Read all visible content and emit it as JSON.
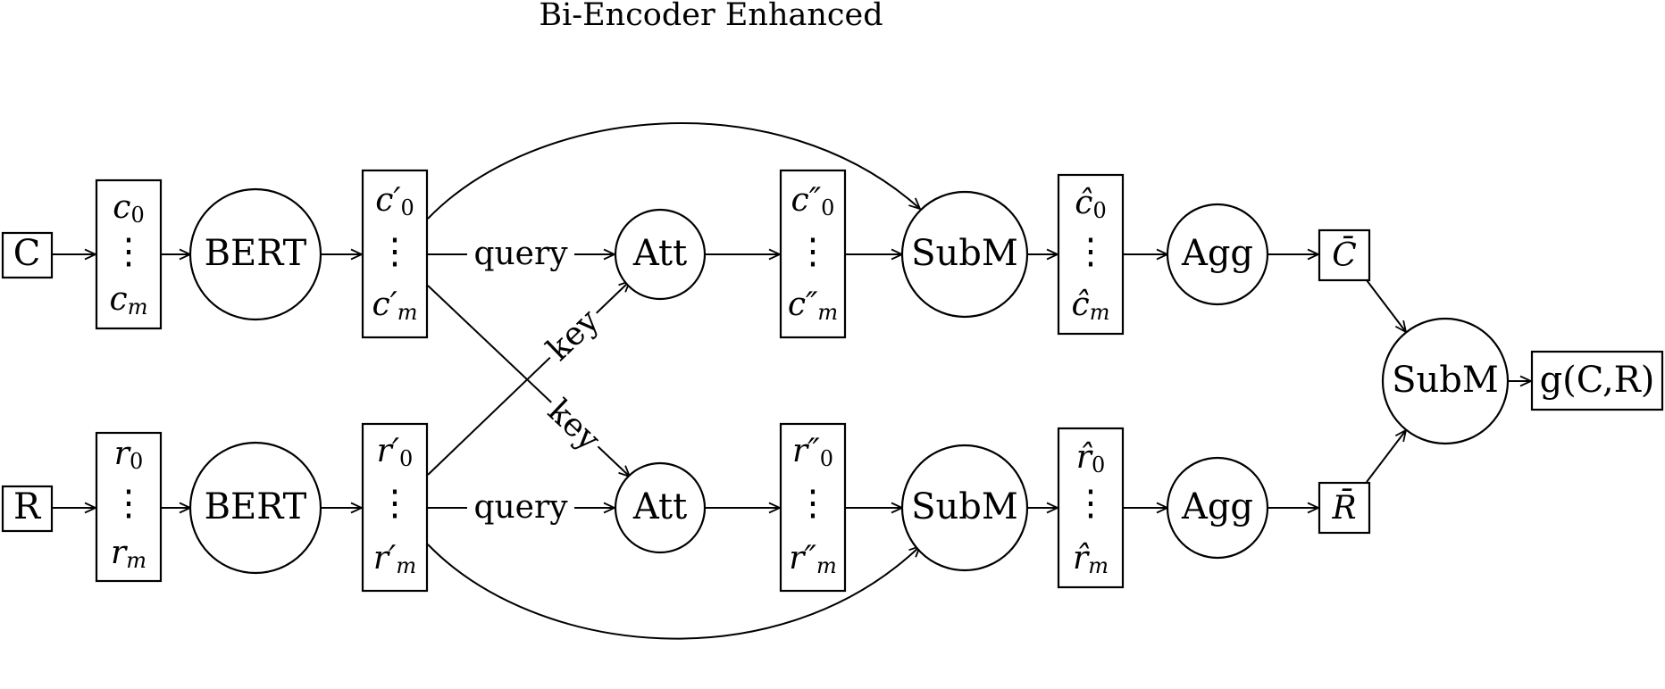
{
  "title": "Bi-Encoder Enhanced",
  "inputs": {
    "context": "C",
    "response": "R"
  },
  "context_branch": {
    "tokens": {
      "first": "c",
      "first_sub": "0",
      "dots": "⋮",
      "last": "c",
      "last_sub": "m"
    },
    "encoder": "BERT",
    "encoded": {
      "first": "c′",
      "first_sub": "0",
      "dots": "⋮",
      "last": "c′",
      "last_sub": "m"
    },
    "attention": "Att",
    "attended": {
      "first": "c″",
      "first_sub": "0",
      "dots": "⋮",
      "last": "c″",
      "last_sub": "m"
    },
    "submult": "SubM",
    "fused": {
      "first": "ĉ",
      "first_sub": "0",
      "dots": "⋮",
      "last": "ĉ",
      "last_sub": "m"
    },
    "aggregator": "Agg",
    "pooled": "C̄"
  },
  "response_branch": {
    "tokens": {
      "first": "r",
      "first_sub": "0",
      "dots": "⋮",
      "last": "r",
      "last_sub": "m"
    },
    "encoder": "BERT",
    "encoded": {
      "first": "r′",
      "first_sub": "0",
      "dots": "⋮",
      "last": "r′",
      "last_sub": "m"
    },
    "attention": "Att",
    "attended": {
      "first": "r″",
      "first_sub": "0",
      "dots": "⋮",
      "last": "r″",
      "last_sub": "m"
    },
    "submult": "SubM",
    "fused": {
      "first": "r̂",
      "first_sub": "0",
      "dots": "⋮",
      "last": "r̂",
      "last_sub": "m"
    },
    "aggregator": "Agg",
    "pooled": "R̄"
  },
  "merge": {
    "submult": "SubM",
    "output": "g(C,R)"
  },
  "edge_labels": {
    "query": "query",
    "key": "key"
  }
}
